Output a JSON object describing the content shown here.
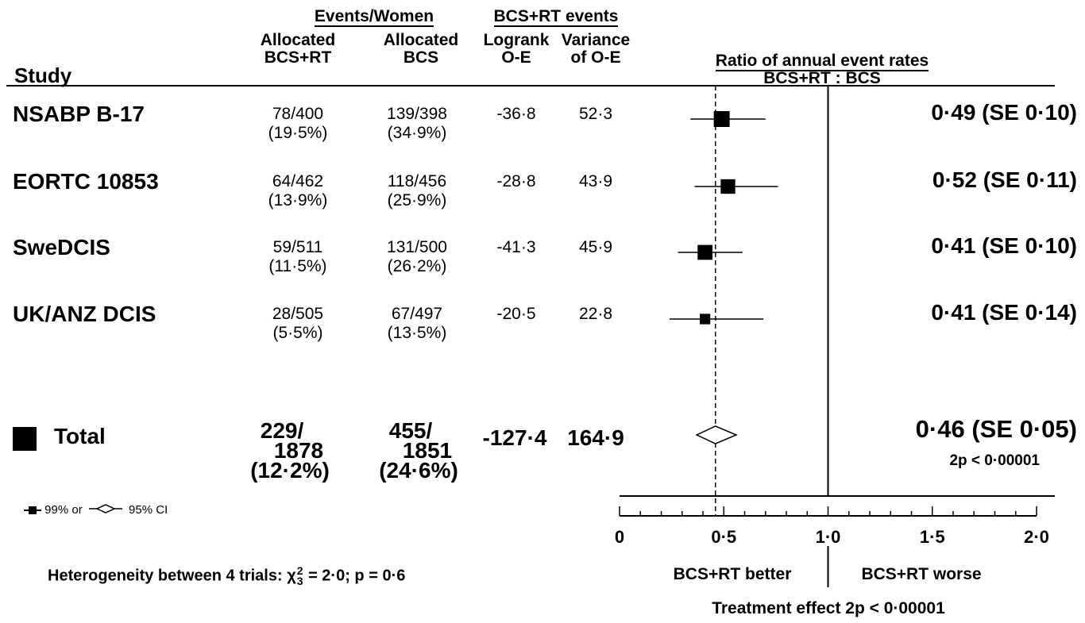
{
  "headers": {
    "study": "Study",
    "events_women": "Events/Women",
    "alloc_bcsrt_1": "Allocated",
    "alloc_bcsrt_2": "BCS+RT",
    "alloc_bcs_1": "Allocated",
    "alloc_bcs_2": "BCS",
    "bcsrt_events": "BCS+RT events",
    "logrank_1": "Logrank",
    "logrank_2": "O-E",
    "variance_1": "Variance",
    "variance_2": "of O-E",
    "ratio_1": "Ratio of annual event rates",
    "ratio_2": "BCS+RT : BCS"
  },
  "studies": [
    {
      "name": "NSABP B-17",
      "bcsrt": "78/400",
      "bcsrt_pct": "(19·5%)",
      "bcs": "139/398",
      "bcs_pct": "(34·9%)",
      "oe": "-36·8",
      "var": "52·3",
      "ratio_text": "0·49",
      "se_text": "(SE 0·10)"
    },
    {
      "name": "EORTC 10853",
      "bcsrt": "64/462",
      "bcsrt_pct": "(13·9%)",
      "bcs": "118/456",
      "bcs_pct": "(25·9%)",
      "oe": "-28·8",
      "var": "43·9",
      "ratio_text": "0·52",
      "se_text": "(SE 0·11)"
    },
    {
      "name": "SweDCIS",
      "bcsrt": "59/511",
      "bcsrt_pct": "(11·5%)",
      "bcs": "131/500",
      "bcs_pct": "(26·2%)",
      "oe": "-41·3",
      "var": "45·9",
      "ratio_text": "0·41",
      "se_text": "(SE 0·10)"
    },
    {
      "name": "UK/ANZ DCIS",
      "bcsrt": "28/505",
      "bcsrt_pct": "(5·5%)",
      "bcs": "67/497",
      "bcs_pct": "(13·5%)",
      "oe": "-20·5",
      "var": "22·8",
      "ratio_text": "0·41",
      "se_text": "(SE 0·14)"
    }
  ],
  "total": {
    "name": "Total",
    "bcsrt_a": "229/",
    "bcsrt_b": "1878",
    "bcsrt_pct": "(12·2%)",
    "bcs_a": "455/",
    "bcs_b": "1851",
    "bcs_pct": "(24·6%)",
    "oe": "-127·4",
    "var": "164·9",
    "ratio_text": "0·46",
    "se_text": "(SE 0·05)",
    "p_text": "2p < 0·00001"
  },
  "legend": {
    "ci99": "99% or",
    "ci95": "95% CI"
  },
  "heterogeneity": {
    "prefix": "Heterogeneity between 4 trials: ",
    "chi": "χ",
    "sup": "2",
    "sub": "3",
    "suffix": " = 2·0; p = 0·6"
  },
  "axis_labels": {
    "better": "BCS+RT better",
    "worse": "BCS+RT worse",
    "effect": "Treatment effect 2p < 0·00001"
  },
  "chart_data": {
    "type": "forest",
    "xlim": [
      0,
      2
    ],
    "x_ticks": [
      0,
      0.5,
      1,
      1.5,
      2
    ],
    "x_tick_labels": [
      "0",
      "0·5",
      "1·0",
      "1·5",
      "2·0"
    ],
    "reference_line": 1.0,
    "overall_line": 0.46,
    "studies": [
      {
        "name": "NSABP B-17",
        "ratio": 0.49,
        "ci_low": 0.34,
        "ci_high": 0.7,
        "weight": 52.3
      },
      {
        "name": "EORTC 10853",
        "ratio": 0.52,
        "ci_low": 0.36,
        "ci_high": 0.76,
        "weight": 43.9
      },
      {
        "name": "SweDCIS",
        "ratio": 0.41,
        "ci_low": 0.28,
        "ci_high": 0.59,
        "weight": 45.9
      },
      {
        "name": "UK/ANZ DCIS",
        "ratio": 0.41,
        "ci_low": 0.24,
        "ci_high": 0.69,
        "weight": 22.8
      }
    ],
    "total": {
      "ratio": 0.46,
      "ci_low": 0.37,
      "ci_high": 0.56
    }
  }
}
